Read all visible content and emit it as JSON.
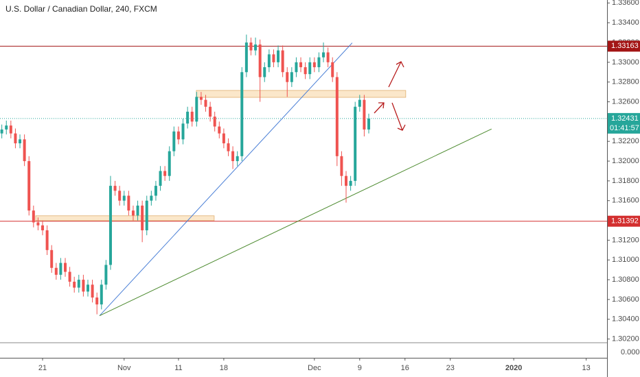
{
  "chart_data": {
    "type": "candlestick",
    "title": "U.S. Dollar / Canadian Dollar, 240, FXCM",
    "x": [
      -4.5,
      -4,
      -3.5,
      -3,
      -2.5,
      -2,
      -1.5,
      -1,
      -0.5,
      0,
      0.5,
      1,
      1.5,
      2,
      2.5,
      3,
      3.5,
      4,
      4.5,
      5,
      5.5,
      6,
      6.5,
      7,
      7.5,
      8,
      8.5,
      9,
      9.5,
      10,
      10.5,
      11,
      11.5,
      12,
      12.5,
      13,
      13.5,
      14,
      14.5,
      15,
      15.5,
      16,
      16.5,
      17,
      17.5,
      18,
      18.5,
      19,
      19.5,
      20,
      20.5,
      21,
      21.5,
      22,
      22.5,
      23,
      23.5,
      24,
      24.5,
      25,
      25.5,
      26,
      26.5,
      27,
      27.5,
      28,
      28.5,
      29,
      29.5,
      30,
      30.5,
      31,
      31.5,
      32,
      32.5,
      33,
      33.5,
      34,
      34.5,
      35,
      35.5,
      36
    ],
    "open": [
      1.3228,
      1.3232,
      1.3236,
      1.3228,
      1.3218,
      1.3222,
      1.32,
      1.315,
      1.3138,
      1.3135,
      1.313,
      1.311,
      1.3092,
      1.3085,
      1.3097,
      1.3088,
      1.3078,
      1.3072,
      1.308,
      1.3068,
      1.3075,
      1.3062,
      1.3055,
      1.3075,
      1.3095,
      1.3175,
      1.317,
      1.316,
      1.3165,
      1.315,
      1.3145,
      1.3155,
      1.313,
      1.316,
      1.3165,
      1.3175,
      1.319,
      1.3185,
      1.321,
      1.323,
      1.3222,
      1.3238,
      1.325,
      1.324,
      1.3265,
      1.3262,
      1.3255,
      1.3245,
      1.3235,
      1.3228,
      1.3218,
      1.321,
      1.32,
      1.3205,
      1.329,
      1.332,
      1.3312,
      1.3318,
      1.3285,
      1.3295,
      1.3308,
      1.33,
      1.3312,
      1.329,
      1.328,
      1.329,
      1.33,
      1.3295,
      1.3288,
      1.33,
      1.3295,
      1.3305,
      1.331,
      1.33,
      1.3285,
      1.3205,
      1.3185,
      1.3175,
      1.318,
      1.3255,
      1.3262,
      1.3232
    ],
    "high": [
      1.3237,
      1.3241,
      1.3241,
      1.3233,
      1.3227,
      1.3227,
      1.3205,
      1.3155,
      1.3143,
      1.314,
      1.3135,
      1.3115,
      1.3097,
      1.3102,
      1.3102,
      1.3093,
      1.3083,
      1.3085,
      1.3085,
      1.308,
      1.308,
      1.3067,
      1.308,
      1.31,
      1.3185,
      1.318,
      1.3175,
      1.317,
      1.317,
      1.3155,
      1.316,
      1.316,
      1.3165,
      1.317,
      1.318,
      1.3195,
      1.3195,
      1.3215,
      1.3235,
      1.3235,
      1.3243,
      1.3255,
      1.3255,
      1.327,
      1.327,
      1.3267,
      1.326,
      1.325,
      1.324,
      1.3233,
      1.3223,
      1.3215,
      1.321,
      1.3295,
      1.3328,
      1.3325,
      1.3325,
      1.3323,
      1.33,
      1.3313,
      1.3313,
      1.3317,
      1.3317,
      1.3295,
      1.3295,
      1.3305,
      1.3305,
      1.33,
      1.3305,
      1.3305,
      1.331,
      1.332,
      1.3315,
      1.3305,
      1.329,
      1.321,
      1.319,
      1.3185,
      1.326,
      1.3267,
      1.3267,
      1.3248
    ],
    "low": [
      1.3223,
      1.3227,
      1.3223,
      1.3213,
      1.3213,
      1.3195,
      1.3145,
      1.3133,
      1.313,
      1.3125,
      1.3105,
      1.3087,
      1.308,
      1.308,
      1.3083,
      1.3073,
      1.3067,
      1.3067,
      1.3063,
      1.3063,
      1.3057,
      1.3045,
      1.305,
      1.307,
      1.309,
      1.3165,
      1.3155,
      1.3155,
      1.3145,
      1.314,
      1.314,
      1.3118,
      1.3125,
      1.3155,
      1.316,
      1.317,
      1.318,
      1.318,
      1.3205,
      1.3217,
      1.3217,
      1.3233,
      1.3235,
      1.3235,
      1.3257,
      1.325,
      1.324,
      1.323,
      1.3223,
      1.3213,
      1.3205,
      1.3192,
      1.3195,
      1.32,
      1.3285,
      1.3307,
      1.3307,
      1.326,
      1.328,
      1.329,
      1.3295,
      1.3295,
      1.3285,
      1.3265,
      1.3275,
      1.3285,
      1.329,
      1.3283,
      1.3283,
      1.329,
      1.329,
      1.33,
      1.3295,
      1.328,
      1.3195,
      1.3175,
      1.3158,
      1.317,
      1.3175,
      1.325,
      1.3225,
      1.3228
    ],
    "close": [
      1.3232,
      1.3236,
      1.3228,
      1.3218,
      1.3222,
      1.32,
      1.315,
      1.3138,
      1.3135,
      1.313,
      1.311,
      1.3092,
      1.3085,
      1.3097,
      1.3088,
      1.3078,
      1.3072,
      1.308,
      1.3068,
      1.3075,
      1.3062,
      1.3055,
      1.3075,
      1.3095,
      1.3175,
      1.317,
      1.316,
      1.3165,
      1.315,
      1.3145,
      1.3155,
      1.313,
      1.316,
      1.3165,
      1.3175,
      1.319,
      1.3185,
      1.321,
      1.323,
      1.3222,
      1.3238,
      1.325,
      1.324,
      1.3265,
      1.3262,
      1.3255,
      1.3245,
      1.3235,
      1.3228,
      1.3218,
      1.321,
      1.32,
      1.3205,
      1.329,
      1.332,
      1.3312,
      1.3318,
      1.3285,
      1.3295,
      1.3308,
      1.33,
      1.3312,
      1.329,
      1.328,
      1.329,
      1.33,
      1.3295,
      1.3288,
      1.33,
      1.3295,
      1.3305,
      1.331,
      1.33,
      1.3285,
      1.3205,
      1.3185,
      1.3175,
      1.318,
      1.3255,
      1.3262,
      1.3232,
      1.3243
    ],
    "up_color": "#26a69a",
    "down_color": "#ef5350",
    "xlim": [
      -4.7,
      62.3
    ],
    "xticks": [
      {
        "value": 0,
        "label": "21"
      },
      {
        "value": 9,
        "label": "Nov"
      },
      {
        "value": 15,
        "label": "11"
      },
      {
        "value": 20,
        "label": "18"
      },
      {
        "value": 30,
        "label": "Dec"
      },
      {
        "value": 35,
        "label": "9"
      },
      {
        "value": 40,
        "label": "16"
      },
      {
        "value": 45,
        "label": "23"
      },
      {
        "value": 52,
        "label": "2020"
      },
      {
        "value": 60,
        "label": "13"
      }
    ],
    "ylim": [
      1.3001,
      1.3363
    ],
    "yticks": [
      {
        "value": 1.336,
        "label": "1.33600"
      },
      {
        "value": 1.334,
        "label": "1.33400"
      },
      {
        "value": 1.332,
        "label": "1.33200"
      },
      {
        "value": 1.33,
        "label": "1.33000"
      },
      {
        "value": 1.328,
        "label": "1.32800"
      },
      {
        "value": 1.326,
        "label": "1.32600"
      },
      {
        "value": 1.324,
        "label": "1.32400"
      },
      {
        "value": 1.322,
        "label": "1.32200"
      },
      {
        "value": 1.32,
        "label": "1.32000"
      },
      {
        "value": 1.318,
        "label": "1.31800"
      },
      {
        "value": 1.316,
        "label": "1.31600"
      },
      {
        "value": 1.314,
        "label": "1.31400"
      },
      {
        "value": 1.312,
        "label": "1.31200"
      },
      {
        "value": 1.31,
        "label": "1.31000"
      },
      {
        "value": 1.308,
        "label": "1.30800"
      },
      {
        "value": 1.306,
        "label": "1.30600"
      },
      {
        "value": 1.304,
        "label": "1.30400"
      },
      {
        "value": 1.302,
        "label": "1.30200"
      }
    ],
    "zero_label": "0.00000",
    "grid": false,
    "levels": [
      {
        "value": 1.33163,
        "color": "#a31515"
      },
      {
        "value": 1.31392,
        "color": "#d32f2f"
      }
    ],
    "last_price": 1.32431,
    "last_color": "#26a69a",
    "countdown": "01:41:57",
    "zones": [
      {
        "x": [
          16.97,
          40.08
        ],
        "y": [
          1.32645,
          1.32715
        ]
      },
      {
        "x": [
          -0.76,
          18.94
        ],
        "y": [
          1.31398,
          1.31447
        ]
      }
    ],
    "trend_lines": [
      {
        "x": [
          6.29,
          34.17
        ],
        "y": [
          1.30436,
          1.33196
        ],
        "color": "#4a7fd6"
      },
      {
        "x": [
          6.29,
          49.55
        ],
        "y": [
          1.30436,
          1.32325
        ],
        "color": "#4c8a2e"
      }
    ]
  }
}
